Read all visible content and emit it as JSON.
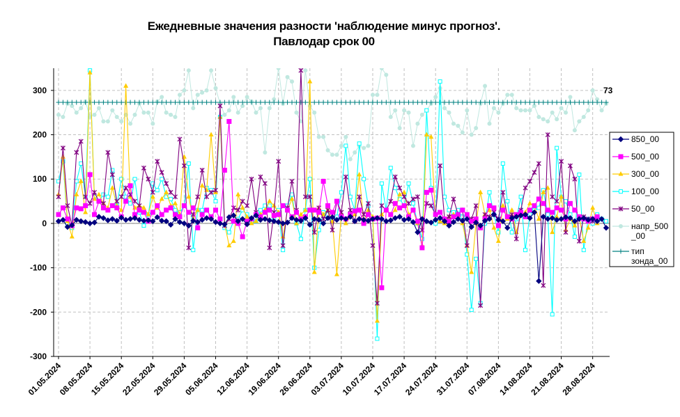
{
  "title_line1": "Ежедневные значения разности 'наблюдение минус прогноз'.",
  "title_line2": "Павлодар    срок 00",
  "annotation": "73",
  "colors": {
    "850_00": "#00007f",
    "500_00": "#ff00ff",
    "300_00": "#ffcc00",
    "100_00": "#00ffff",
    "50_00": "#800080",
    "напр_500_00": "#c0e8e0",
    "тип_зонда_00": "#008080"
  },
  "chart_data": {
    "type": "line",
    "title": "Ежедневные значения разности 'наблюдение минус прогноз'. Павлодар    срок 00",
    "ylim": [
      -300,
      350
    ],
    "yticks": [
      300,
      200,
      100,
      0,
      -100,
      -200,
      -300
    ],
    "grid": true,
    "legend_position": "right",
    "xticks": [
      "01.05.2024",
      "08.05.2024",
      "15.05.2024",
      "22.05.2024",
      "29.05.2024",
      "05.06.2024",
      "12.06.2024",
      "19.06.2024",
      "26.06.2024",
      "03.07.2024",
      "10.07.2024",
      "17.07.2024",
      "24.07.2024",
      "31.07.2024",
      "07.08.2024",
      "14.08.2024",
      "21.08.2024",
      "28.08.2024"
    ],
    "n_days": 123,
    "series": [
      {
        "name": "850_00",
        "marker": "diamond",
        "values": [
          5,
          8,
          -8,
          -4,
          8,
          5,
          3,
          0,
          2,
          15,
          12,
          7,
          10,
          6,
          13,
          8,
          10,
          12,
          8,
          6,
          7,
          5,
          14,
          6,
          5,
          -3,
          10,
          3,
          0,
          -5,
          6,
          3,
          8,
          12,
          10,
          3,
          0,
          -2,
          14,
          18,
          5,
          10,
          -2,
          12,
          18,
          8,
          10,
          7,
          5,
          3,
          0,
          2,
          12,
          8,
          6,
          12,
          -3,
          10,
          8,
          0,
          12,
          14,
          8,
          12,
          10,
          15,
          5,
          10,
          8,
          6,
          10,
          12,
          10,
          5,
          7,
          12,
          15,
          8,
          10,
          3,
          -20,
          10,
          5,
          2,
          8,
          12,
          5,
          -5,
          3,
          10,
          6,
          10,
          -8,
          2,
          -5,
          6,
          10,
          20,
          8,
          5,
          -10,
          12,
          15,
          18,
          20,
          12,
          25,
          -130,
          15,
          10,
          12,
          8,
          10,
          14,
          12,
          5,
          10,
          12,
          8,
          10,
          5,
          10,
          -10
        ]
      },
      {
        "name": "500_00",
        "marker": "square",
        "values": [
          20,
          35,
          10,
          -5,
          35,
          33,
          40,
          110,
          20,
          50,
          35,
          30,
          40,
          35,
          15,
          50,
          85,
          20,
          30,
          25,
          5,
          25,
          40,
          20,
          30,
          35,
          20,
          15,
          40,
          25,
          35,
          -10,
          20,
          30,
          15,
          30,
          10,
          120,
          230,
          5,
          0,
          -30,
          5,
          10,
          20,
          15,
          25,
          30,
          18,
          20,
          40,
          30,
          15,
          25,
          10,
          15,
          30,
          30,
          25,
          95,
          40,
          25,
          50,
          15,
          10,
          20,
          28,
          30,
          0,
          20,
          10,
          12,
          -145,
          30,
          20,
          45,
          35,
          40,
          15,
          30,
          5,
          -55,
          70,
          75,
          20,
          25,
          10,
          5,
          15,
          20,
          30,
          20,
          5,
          10,
          -10,
          10,
          40,
          35,
          -5,
          30,
          15,
          10,
          20,
          25,
          15,
          30,
          40,
          55,
          45,
          30,
          25,
          35,
          30,
          10,
          45,
          30,
          15,
          10,
          5,
          10,
          15
        ]
      },
      {
        "name": "300_00",
        "marker": "triangle",
        "values": [
          65,
          150,
          5,
          -30,
          65,
          95,
          25,
          340,
          55,
          65,
          45,
          35,
          80,
          40,
          30,
          310,
          60,
          35,
          40,
          35,
          20,
          60,
          35,
          55,
          70,
          40,
          45,
          20,
          150,
          60,
          10,
          30,
          85,
          75,
          200,
          70,
          240,
          0,
          -50,
          -40,
          65,
          35,
          15,
          0,
          5,
          20,
          30,
          50,
          40,
          25,
          -30,
          30,
          55,
          0,
          20,
          30,
          320,
          -110,
          35,
          20,
          30,
          5,
          -115,
          20,
          0,
          15,
          20,
          110,
          0,
          30,
          15,
          -220,
          20,
          30,
          20,
          30,
          65,
          70,
          20,
          30,
          0,
          -50,
          200,
          195,
          10,
          5,
          0,
          15,
          20,
          20,
          0,
          -50,
          -110,
          0,
          70,
          20,
          30,
          -10,
          -40,
          40,
          10,
          30,
          -20,
          20,
          25,
          45,
          40,
          10,
          70,
          80,
          -20,
          15,
          60,
          -15,
          10,
          -5,
          15,
          -40,
          -10,
          35,
          0
        ]
      },
      {
        "name": "100_00",
        "marker": "square-open",
        "values": [
          95,
          140,
          0,
          -10,
          95,
          135,
          60,
          345,
          60,
          50,
          65,
          60,
          120,
          40,
          100,
          60,
          45,
          100,
          25,
          -5,
          20,
          90,
          75,
          100,
          60,
          55,
          30,
          25,
          40,
          135,
          -60,
          30,
          30,
          80,
          75,
          50,
          240,
          -10,
          -20,
          5,
          10,
          30,
          20,
          5,
          5,
          30,
          40,
          40,
          10,
          30,
          -60,
          40,
          65,
          0,
          -35,
          30,
          100,
          -100,
          -15,
          25,
          20,
          10,
          15,
          70,
          175,
          60,
          30,
          180,
          100,
          40,
          10,
          -260,
          90,
          30,
          125,
          80,
          55,
          40,
          90,
          45,
          0,
          -35,
          255,
          80,
          0,
          320,
          60,
          30,
          25,
          30,
          15,
          -70,
          -195,
          -80,
          -180,
          0,
          70,
          20,
          -20,
          135,
          50,
          -20,
          10,
          60,
          -60,
          20,
          30,
          35,
          75,
          20,
          -205,
          170,
          60,
          50,
          20,
          -30,
          110,
          -60,
          10,
          0,
          20,
          10,
          5
        ]
      },
      {
        "name": "50_00",
        "marker": "x",
        "values": [
          60,
          170,
          40,
          -5,
          160,
          185,
          60,
          45,
          70,
          50,
          45,
          160,
          110,
          50,
          60,
          80,
          65,
          50,
          40,
          125,
          100,
          70,
          140,
          115,
          90,
          70,
          60,
          190,
          130,
          -55,
          20,
          60,
          120,
          60,
          70,
          75,
          265,
          -5,
          10,
          35,
          30,
          50,
          40,
          100,
          25,
          105,
          90,
          -55,
          25,
          140,
          -50,
          35,
          95,
          30,
          345,
          60,
          60,
          -20,
          35,
          10,
          30,
          -15,
          50,
          25,
          105,
          30,
          5,
          60,
          20,
          45,
          -50,
          -180,
          40,
          30,
          50,
          105,
          80,
          60,
          45,
          55,
          60,
          -15,
          45,
          40,
          20,
          130,
          10,
          15,
          55,
          20,
          30,
          -50,
          10,
          40,
          -185,
          20,
          15,
          25,
          10,
          70,
          15,
          20,
          -35,
          30,
          80,
          95,
          115,
          135,
          -140,
          200,
          60,
          50,
          140,
          -20,
          130,
          100,
          -40,
          15,
          10,
          5,
          10
        ]
      },
      {
        "name": "напр_500_00",
        "marker": "dot",
        "values": [
          245,
          240,
          270,
          265,
          250,
          260,
          275,
          240,
          245,
          260,
          230,
          230,
          255,
          240,
          230,
          245,
          225,
          245,
          270,
          250,
          250,
          225,
          275,
          285,
          250,
          245,
          240,
          290,
          300,
          345,
          260,
          290,
          295,
          300,
          345,
          305,
          270,
          245,
          255,
          285,
          250,
          265,
          285,
          275,
          250,
          260,
          160,
          260,
          280,
          350,
          270,
          330,
          320,
          250,
          230,
          345,
          265,
          250,
          195,
          195,
          165,
          155,
          155,
          175,
          195,
          145,
          160,
          175,
          170,
          175,
          290,
          290,
          350,
          335,
          240,
          255,
          215,
          255,
          250,
          175,
          225,
          245,
          255,
          270,
          285,
          305,
          260,
          250,
          225,
          220,
          205,
          255,
          200,
          215,
          270,
          310,
          225,
          260,
          250,
          270,
          290,
          290,
          260,
          255,
          255,
          255,
          265,
          240,
          235,
          230,
          250,
          235,
          260,
          250,
          285,
          210,
          230,
          240,
          255,
          300,
          280,
          255,
          270
        ]
      },
      {
        "name": "тип_зонда_00",
        "marker": "plus",
        "values": [
          273,
          273,
          273,
          273,
          273,
          273,
          273,
          273,
          273,
          273,
          273,
          273,
          273,
          273,
          273,
          273,
          273,
          273,
          273,
          273,
          273,
          273,
          273,
          273,
          273,
          273,
          273,
          273,
          273,
          273,
          273,
          273,
          273,
          273,
          273,
          273,
          273,
          273,
          273,
          273,
          273,
          273,
          273,
          273,
          273,
          273,
          273,
          273,
          273,
          273,
          273,
          273,
          273,
          273,
          273,
          273,
          273,
          273,
          273,
          273,
          273,
          273,
          273,
          273,
          273,
          273,
          273,
          273,
          273,
          273,
          273,
          273,
          273,
          273,
          273,
          273,
          273,
          273,
          273,
          273,
          273,
          273,
          273,
          273,
          273,
          273,
          273,
          273,
          273,
          273,
          273,
          273,
          273,
          273,
          273,
          273,
          273,
          273,
          273,
          273,
          273,
          273,
          273,
          273,
          273,
          273,
          273,
          273,
          273,
          273,
          273,
          273,
          273,
          273,
          273,
          273,
          273,
          273,
          273,
          273,
          273,
          273,
          273
        ]
      }
    ],
    "legend": [
      {
        "label": "850_00",
        "series": "850_00"
      },
      {
        "label": "500_00",
        "series": "500_00"
      },
      {
        "label": "300_00",
        "series": "300_00"
      },
      {
        "label": "100_00",
        "series": "100_00"
      },
      {
        "label": "50_00",
        "series": "50_00"
      },
      {
        "label": "напр_500",
        "label2": "_00",
        "series": "напр_500_00"
      },
      {
        "label": "тип",
        "label2": "зонда_00",
        "series": "тип_зонда_00"
      }
    ]
  }
}
